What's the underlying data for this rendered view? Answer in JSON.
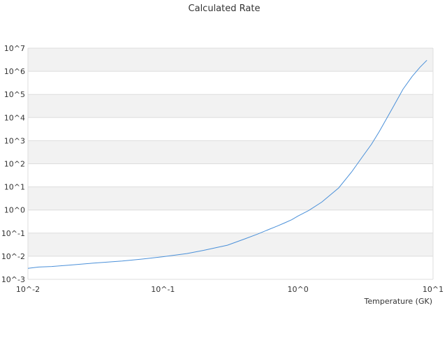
{
  "chart_data": {
    "type": "line",
    "title": "Calculated Rate",
    "xlabel": "Temperature (GK)",
    "ylabel": "",
    "x_scale": "log",
    "y_scale": "log",
    "xlim": [
      0.01,
      10
    ],
    "ylim": [
      0.001,
      10000000
    ],
    "x_ticks": [
      "10^-2",
      "10^-1",
      "10^0",
      "10^1"
    ],
    "y_ticks": [
      "10^-3",
      "10^-2",
      "10^-1",
      "10^0",
      "10^1",
      "10^2",
      "10^3",
      "10^4",
      "10^5",
      "10^6",
      "10^7"
    ],
    "grid": "alternating horizontal bands",
    "colors": {
      "line": "#4a90d9",
      "band": "#f2f2f2",
      "grid": "#dddddd"
    },
    "series": [
      {
        "x": [
          0.01,
          0.012,
          0.015,
          0.02,
          0.03,
          0.05,
          0.07,
          0.1,
          0.15,
          0.2,
          0.3,
          0.4,
          0.5,
          0.6,
          0.7,
          0.8,
          0.9,
          1.0,
          1.2,
          1.5,
          2.0,
          2.5,
          3.0,
          3.5,
          4.0,
          5.0,
          6.0,
          7.0,
          8.0,
          9.0
        ],
        "y": [
          0.003,
          0.0034,
          0.0036,
          0.0041,
          0.005,
          0.0062,
          0.0075,
          0.0095,
          0.013,
          0.018,
          0.03,
          0.055,
          0.09,
          0.14,
          0.2,
          0.28,
          0.38,
          0.55,
          0.95,
          2.2,
          9,
          45,
          200,
          700,
          2500,
          25000,
          170000,
          600000,
          1500000,
          3000000
        ]
      }
    ]
  }
}
